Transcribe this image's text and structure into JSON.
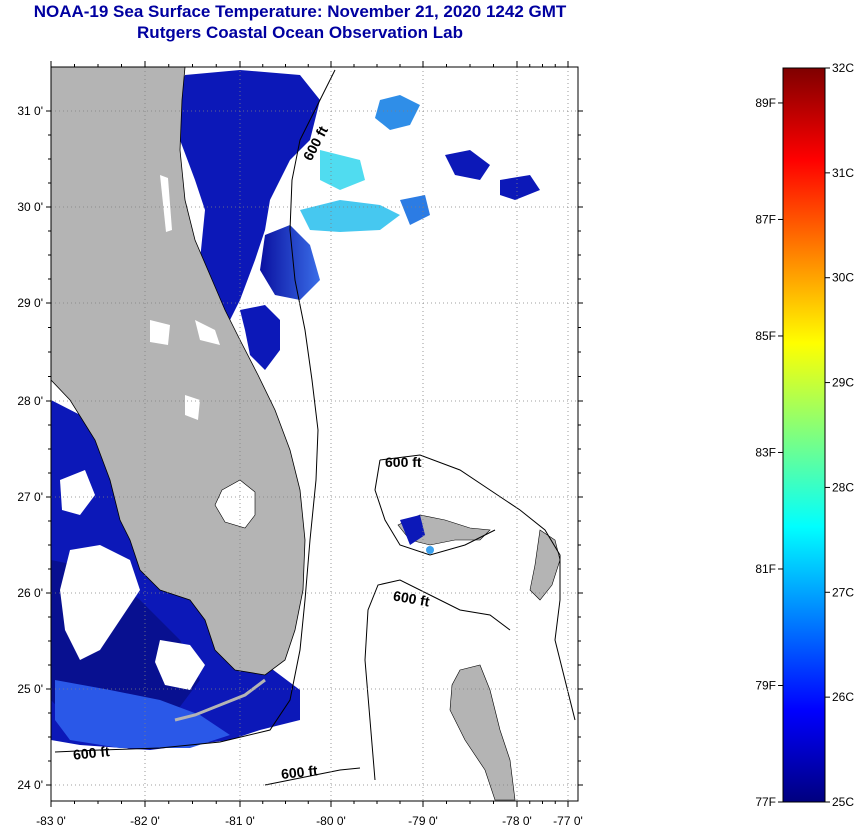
{
  "title": {
    "line1": "NOAA-19 Sea Surface Temperature:  November 21, 2020 1242 GMT",
    "line2": "Rutgers Coastal Ocean Observation Lab"
  },
  "map": {
    "lat_labels": [
      "31 0'",
      "30 0'",
      "29 0'",
      "28 0'",
      "27 0'",
      "26 0'",
      "25 0'",
      "24 0'"
    ],
    "lon_labels": [
      "-83 0'",
      "-82 0'",
      "-81 0'",
      "-80 0'",
      "-79 0'",
      "-78 0'",
      "-77 0'"
    ],
    "contour_label": "600 ft",
    "colors": {
      "land": "#b4b4b4",
      "cold": "#0a14b4",
      "mid": "#1e3cdc",
      "warm": "#4ab4f0",
      "cyan": "#50dcf0"
    }
  },
  "colorbar": {
    "celsius_labels": [
      "32C",
      "31C",
      "30C",
      "29C",
      "28C",
      "27C",
      "26C",
      "25C"
    ],
    "fahrenheit_labels": [
      "89F",
      "87F",
      "85F",
      "83F",
      "81F",
      "79F",
      "77F"
    ]
  }
}
